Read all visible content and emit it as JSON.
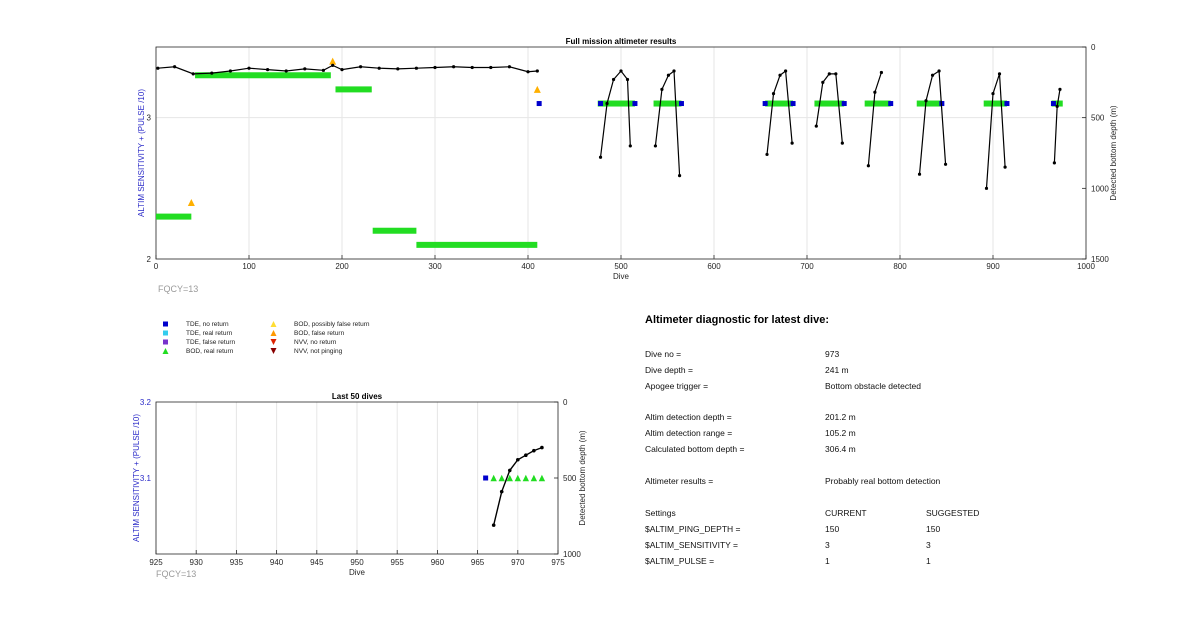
{
  "chart_data": [
    {
      "type": "scatter",
      "title": "Full mission altimeter results",
      "xlabel": "Dive",
      "ylabel_left": "ALTIM SENSITIVITY + (PULSE /10)",
      "ylabel_right": "Detected bottom depth (m)",
      "xlim": [
        0,
        1000
      ],
      "ylim_left": [
        2,
        3.5
      ],
      "ylim_right": [
        1500,
        0
      ],
      "x_ticks": [
        "0",
        "100",
        "200",
        "300",
        "400",
        "500",
        "600",
        "700",
        "800",
        "900",
        "1000"
      ],
      "y_ticks_left": [
        "2",
        "3"
      ],
      "y_ticks_right": [
        "0",
        "500",
        "1000",
        "1500"
      ],
      "grid": true,
      "annotation": "FQCY=13",
      "settings_bars": [
        {
          "x0": 0,
          "x1": 38,
          "y": 2.3,
          "kind": "BOD, real return"
        },
        {
          "x0": 42,
          "x1": 188,
          "y": 3.3,
          "kind": "BOD, real return"
        },
        {
          "x0": 193,
          "x1": 232,
          "y": 3.2,
          "kind": "BOD, real return"
        },
        {
          "x0": 233,
          "x1": 280,
          "y": 2.2,
          "kind": "BOD, real return"
        },
        {
          "x0": 280,
          "x1": 410,
          "y": 2.1,
          "kind": "BOD, real return"
        },
        {
          "x0": 475,
          "x1": 515,
          "y": 3.1,
          "kind": "BOD, real return"
        },
        {
          "x0": 535,
          "x1": 565,
          "y": 3.1,
          "kind": "BOD, real return"
        },
        {
          "x0": 655,
          "x1": 685,
          "y": 3.1,
          "kind": "BOD, real return"
        },
        {
          "x0": 708,
          "x1": 740,
          "y": 3.1,
          "kind": "BOD, real return"
        },
        {
          "x0": 762,
          "x1": 790,
          "y": 3.1,
          "kind": "BOD, real return"
        },
        {
          "x0": 818,
          "x1": 845,
          "y": 3.1,
          "kind": "BOD, real return"
        },
        {
          "x0": 890,
          "x1": 915,
          "y": 3.1,
          "kind": "BOD, real return"
        },
        {
          "x0": 963,
          "x1": 975,
          "y": 3.1,
          "kind": "BOD, real return"
        }
      ],
      "bottom_depth_series": [
        {
          "x": [
            2,
            20,
            40,
            60,
            80,
            100,
            120,
            140,
            160,
            180,
            190,
            200,
            220,
            240,
            260,
            280,
            300,
            320,
            340,
            360,
            380,
            400,
            410
          ],
          "depth": [
            150,
            140,
            190,
            185,
            170,
            150,
            160,
            170,
            155,
            165,
            130,
            160,
            140,
            150,
            155,
            150,
            145,
            140,
            145,
            145,
            140,
            175,
            170
          ]
        },
        {
          "x": [
            478,
            485,
            492,
            500,
            507,
            510
          ],
          "depth": [
            780,
            400,
            230,
            170,
            230,
            700
          ]
        },
        {
          "x": [
            537,
            544,
            551,
            557,
            563
          ],
          "depth": [
            700,
            300,
            200,
            170,
            910
          ]
        },
        {
          "x": [
            657,
            664,
            671,
            677,
            684
          ],
          "depth": [
            760,
            330,
            200,
            170,
            680
          ]
        },
        {
          "x": [
            710,
            717,
            724,
            731,
            738
          ],
          "depth": [
            560,
            250,
            190,
            190,
            680
          ]
        },
        {
          "x": [
            766,
            773,
            780
          ],
          "depth": [
            840,
            320,
            180
          ]
        },
        {
          "x": [
            821,
            828,
            835,
            842,
            849
          ],
          "depth": [
            900,
            380,
            200,
            170,
            830
          ]
        },
        {
          "x": [
            893,
            900,
            907,
            913
          ],
          "depth": [
            1000,
            330,
            190,
            850
          ]
        },
        {
          "x": [
            966,
            969,
            972
          ],
          "depth": [
            820,
            420,
            300
          ]
        }
      ],
      "tde_points": [
        {
          "x": 412,
          "y": 3.1
        },
        {
          "x": 478,
          "y": 3.1
        },
        {
          "x": 515,
          "y": 3.1
        },
        {
          "x": 565,
          "y": 3.1
        },
        {
          "x": 655,
          "y": 3.1
        },
        {
          "x": 685,
          "y": 3.1
        },
        {
          "x": 740,
          "y": 3.1
        },
        {
          "x": 790,
          "y": 3.1
        },
        {
          "x": 845,
          "y": 3.1
        },
        {
          "x": 915,
          "y": 3.1
        },
        {
          "x": 965,
          "y": 3.1
        }
      ],
      "bod_false_points": [
        {
          "x": 38,
          "y": 2.4
        },
        {
          "x": 190,
          "y": 3.4
        },
        {
          "x": 410,
          "y": 3.2
        }
      ]
    },
    {
      "type": "scatter",
      "title": "Last 50 dives",
      "xlabel": "Dive",
      "ylabel_left": "ALTIM SENSITIVITY + (PULSE /10)",
      "ylabel_right": "Detected bottom depth (m)",
      "xlim": [
        925,
        975
      ],
      "ylim_left": [
        3.0,
        3.2
      ],
      "ylim_right": [
        1000,
        0
      ],
      "x_ticks": [
        "925",
        "930",
        "935",
        "940",
        "945",
        "950",
        "955",
        "960",
        "965",
        "970",
        "975"
      ],
      "y_ticks_left": [
        "3.1",
        "3.2"
      ],
      "y_ticks_right": [
        "0",
        "500",
        "1000"
      ],
      "grid": true,
      "annotation": "FQCY=13",
      "tde_points": [
        {
          "x": 966,
          "y": 3.1
        }
      ],
      "bod_points": [
        {
          "x": 967,
          "y": 3.1
        },
        {
          "x": 968,
          "y": 3.1
        },
        {
          "x": 969,
          "y": 3.1
        },
        {
          "x": 970,
          "y": 3.1
        },
        {
          "x": 971,
          "y": 3.1
        },
        {
          "x": 972,
          "y": 3.1
        },
        {
          "x": 973,
          "y": 3.1
        }
      ],
      "bottom_depth": {
        "x": [
          967,
          968,
          969,
          970,
          971,
          972,
          973
        ],
        "depth": [
          810,
          590,
          450,
          380,
          350,
          320,
          300
        ]
      }
    }
  ],
  "legend": [
    {
      "label": "TDE, no return",
      "color": "#0000cc",
      "shape": "square"
    },
    {
      "label": "TDE, real return",
      "color": "#33ccee",
      "shape": "square"
    },
    {
      "label": "TDE, false return",
      "color": "#7733cc",
      "shape": "square"
    },
    {
      "label": "BOD, real return",
      "color": "#22dd22",
      "shape": "triangle-up"
    },
    {
      "label": "BOD, possibly false return",
      "color": "#ffdd33",
      "shape": "triangle-up"
    },
    {
      "label": "BOD, false return",
      "color": "#ff9900",
      "shape": "triangle-up"
    },
    {
      "label": "NVV, no return",
      "color": "#dd2200",
      "shape": "triangle-down"
    },
    {
      "label": "NVV, not pinging",
      "color": "#880000",
      "shape": "triangle-down"
    }
  ],
  "diagnostic": {
    "title": "Altimeter diagnostic for latest dive:",
    "rows": [
      {
        "label": "Dive no =",
        "value": "973"
      },
      {
        "label": "Dive depth =",
        "value": "241 m"
      },
      {
        "label": "Apogee trigger =",
        "value": "Bottom obstacle detected"
      },
      {
        "label": "Altim detection depth =",
        "value": "201.2 m"
      },
      {
        "label": "Altim detection range =",
        "value": "105.2 m"
      },
      {
        "label": "Calculated bottom depth =",
        "value": "306.4 m"
      },
      {
        "label": "Altimeter results =",
        "value": "Probably real bottom detection"
      }
    ],
    "settings_header": {
      "label": "Settings",
      "current": "CURRENT",
      "suggested": "SUGGESTED"
    },
    "settings": [
      {
        "label": "$ALTIM_PING_DEPTH =",
        "current": "150",
        "suggested": "150"
      },
      {
        "label": "$ALTIM_SENSITIVITY =",
        "current": "3",
        "suggested": "3"
      },
      {
        "label": "$ALTIM_PULSE =",
        "current": "1",
        "suggested": "1"
      }
    ]
  }
}
